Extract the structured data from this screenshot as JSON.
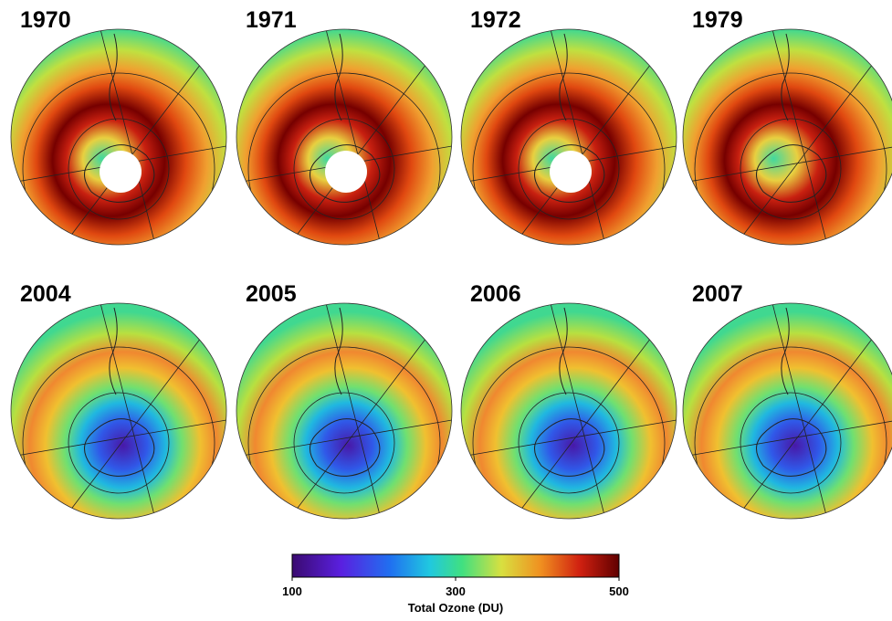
{
  "panels": [
    {
      "title": "1970"
    },
    {
      "title": "1971"
    },
    {
      "title": "1972"
    },
    {
      "title": "1979"
    },
    {
      "title": "2004"
    },
    {
      "title": "2005"
    },
    {
      "title": "2006"
    },
    {
      "title": "2007"
    }
  ],
  "colorbar": {
    "label": "Total Ozone (DU)",
    "lim": [
      100,
      500
    ],
    "ticks": [
      100,
      300,
      500
    ]
  }
}
